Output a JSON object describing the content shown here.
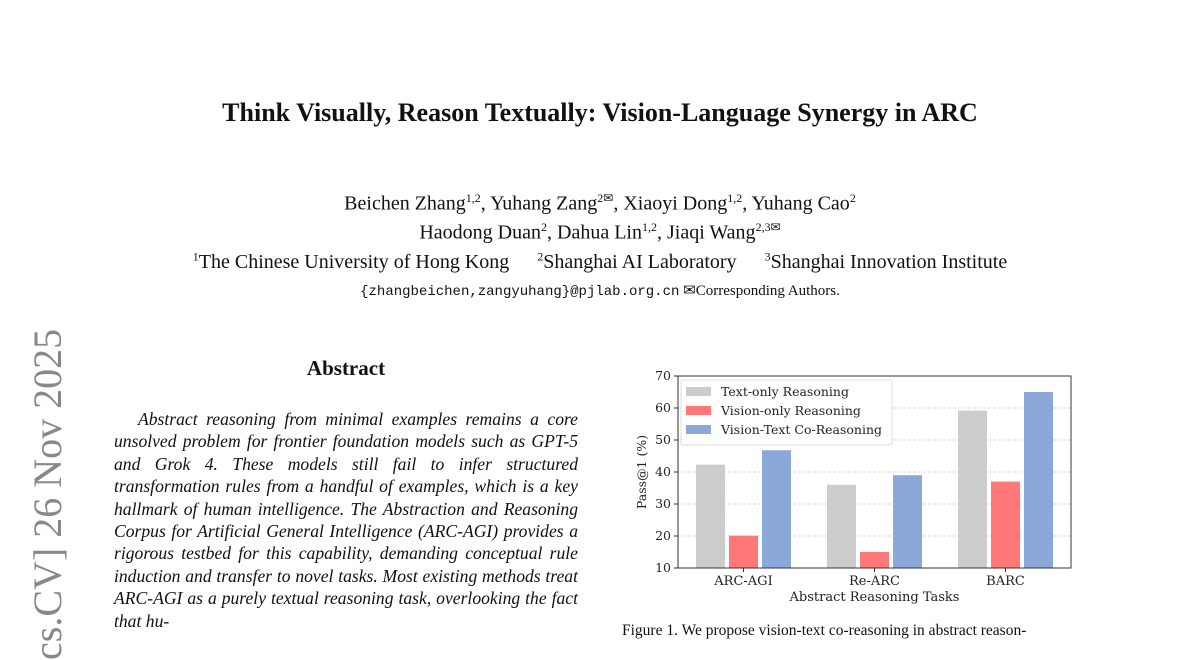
{
  "stamp": "cs.CV]  26 Nov 2025",
  "title": "Think Visually, Reason Textually: Vision-Language Synergy in ARC",
  "authors_line1": [
    {
      "name": "Beichen Zhang",
      "sup": "1,2"
    },
    {
      "name": "Yuhang Zang",
      "sup": "2✉"
    },
    {
      "name": "Xiaoyi Dong",
      "sup": "1,2"
    },
    {
      "name": "Yuhang Cao",
      "sup": "2"
    }
  ],
  "authors_line2": [
    {
      "name": "Haodong Duan",
      "sup": "2"
    },
    {
      "name": "Dahua Lin",
      "sup": "1,2"
    },
    {
      "name": "Jiaqi Wang",
      "sup": "2,3✉"
    }
  ],
  "affiliations": [
    {
      "sup": "1",
      "name": "The Chinese University of Hong Kong"
    },
    {
      "sup": "2",
      "name": "Shanghai AI Laboratory"
    },
    {
      "sup": "3",
      "name": "Shanghai Innovation Institute"
    }
  ],
  "email": "{zhangbeichen,zangyuhang}@pjlab.org.cn",
  "corresponding": "✉Corresponding Authors.",
  "abstract": {
    "heading": "Abstract",
    "text": "Abstract reasoning from minimal examples remains a core unsolved problem for frontier foundation models such as GPT-5 and Grok 4. These models still fail to infer structured transformation rules from a handful of examples, which is a key hallmark of human intelligence. The Abstraction and Reasoning Corpus for Artificial General Intelligence (ARC-AGI) provides a rigorous testbed for this capability, demanding conceptual rule induction and transfer to novel tasks. Most existing methods treat ARC-AGI as a purely textual reasoning task, overlooking the fact that hu-"
  },
  "caption": "Figure 1. We propose vision-text co-reasoning in abstract reason-",
  "chart_data": {
    "type": "bar",
    "categories": [
      "ARC-AGI",
      "Re-ARC",
      "BARC"
    ],
    "series": [
      {
        "name": "Text-only Reasoning",
        "color": "#cccccc",
        "values": [
          42.3,
          36.0,
          59.2
        ]
      },
      {
        "name": "Vision-only Reasoning",
        "color": "#ff7777",
        "values": [
          20.1,
          15.0,
          37.0
        ]
      },
      {
        "name": "Vision-Text Co-Reasoning",
        "color": "#8aa9d8",
        "values": [
          46.8,
          39.0,
          65.0
        ]
      }
    ],
    "xlabel": "Abstract Reasoning Tasks",
    "ylabel": "Pass@1 (%)",
    "ylim": [
      10,
      70
    ],
    "yticks": [
      10,
      20,
      30,
      40,
      50,
      60,
      70
    ],
    "grid": true,
    "legend": "top-left"
  }
}
